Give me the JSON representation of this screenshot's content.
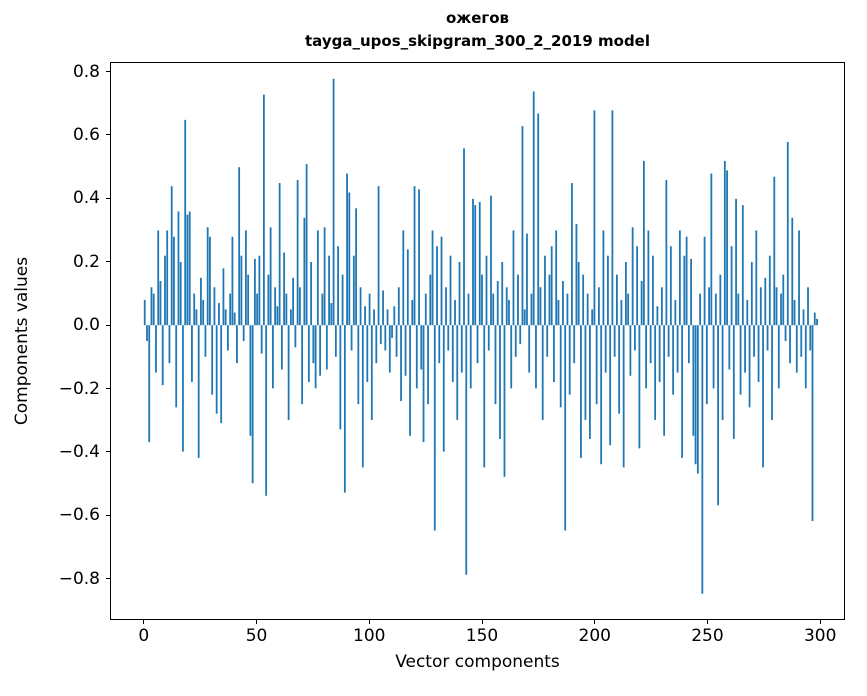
{
  "chart_data": {
    "type": "bar",
    "title": "ожегов",
    "subtitle": "tayga_upos_skipgram_300_2_2019 model",
    "xlabel": "Vector components",
    "ylabel": "Components values",
    "bar_color": "#1f77b4",
    "grid": false,
    "legend": null,
    "n_components": 300,
    "xlim": [
      -15,
      311
    ],
    "ylim": [
      -0.93,
      0.83
    ],
    "xticks": [
      0,
      50,
      100,
      150,
      200,
      250,
      300
    ],
    "xtick_labels": [
      "0",
      "50",
      "100",
      "150",
      "200",
      "250",
      "300"
    ],
    "yticks": [
      -0.8,
      -0.6,
      -0.4,
      -0.2,
      0.0,
      0.2,
      0.4,
      0.6,
      0.8
    ],
    "ytick_labels": [
      "−0.8",
      "−0.6",
      "−0.4",
      "−0.2",
      "0.0",
      "0.2",
      "0.4",
      "0.6",
      "0.8"
    ],
    "values": [
      0.08,
      -0.05,
      -0.37,
      0.12,
      0.1,
      -0.15,
      0.3,
      0.14,
      -0.19,
      0.22,
      0.3,
      -0.12,
      0.44,
      0.28,
      -0.26,
      0.36,
      0.2,
      -0.4,
      0.65,
      0.35,
      0.36,
      -0.18,
      0.1,
      0.05,
      -0.42,
      0.15,
      0.08,
      -0.1,
      0.31,
      0.28,
      -0.22,
      0.12,
      -0.28,
      0.07,
      -0.31,
      0.18,
      0.05,
      -0.08,
      0.1,
      0.28,
      0.04,
      -0.12,
      0.5,
      0.22,
      -0.05,
      0.3,
      0.16,
      -0.35,
      -0.5,
      0.21,
      0.1,
      0.22,
      -0.09,
      0.73,
      -0.54,
      0.16,
      0.31,
      -0.2,
      0.12,
      0.06,
      0.45,
      -0.14,
      0.23,
      0.1,
      -0.3,
      0.05,
      0.15,
      -0.07,
      0.46,
      0.12,
      -0.25,
      0.34,
      0.51,
      -0.18,
      0.2,
      -0.12,
      -0.2,
      0.3,
      -0.16,
      0.1,
      0.31,
      -0.14,
      0.22,
      0.07,
      0.78,
      -0.1,
      0.25,
      -0.33,
      0.16,
      -0.53,
      0.48,
      0.42,
      -0.08,
      0.22,
      0.37,
      -0.25,
      0.12,
      -0.45,
      0.06,
      -0.18,
      0.1,
      -0.3,
      0.05,
      -0.12,
      0.44,
      -0.06,
      0.11,
      -0.08,
      0.05,
      -0.15,
      -0.04,
      0.06,
      -0.1,
      0.12,
      -0.24,
      0.3,
      -0.16,
      0.24,
      -0.35,
      0.08,
      0.44,
      -0.2,
      0.43,
      -0.14,
      -0.37,
      0.1,
      -0.25,
      0.16,
      0.3,
      -0.65,
      0.25,
      -0.12,
      0.28,
      -0.4,
      0.12,
      -0.08,
      0.22,
      -0.18,
      0.08,
      -0.3,
      0.2,
      -0.15,
      0.56,
      -0.79,
      0.1,
      -0.2,
      0.4,
      0.38,
      -0.12,
      0.39,
      0.16,
      -0.45,
      0.22,
      -0.08,
      0.41,
      0.1,
      -0.25,
      0.14,
      -0.36,
      0.2,
      -0.48,
      0.12,
      0.08,
      -0.2,
      0.3,
      -0.1,
      0.16,
      -0.06,
      0.63,
      0.05,
      0.29,
      -0.15,
      0.1,
      0.74,
      -0.2,
      0.67,
      0.12,
      -0.3,
      0.22,
      -0.1,
      0.16,
      0.25,
      -0.18,
      0.3,
      0.08,
      -0.26,
      0.14,
      -0.65,
      0.1,
      -0.22,
      0.45,
      -0.12,
      0.32,
      0.2,
      -0.42,
      0.16,
      -0.3,
      0.1,
      -0.36,
      0.05,
      0.68,
      -0.25,
      0.12,
      -0.44,
      0.3,
      -0.15,
      0.22,
      -0.38,
      0.68,
      -0.1,
      0.16,
      -0.28,
      0.08,
      -0.45,
      0.2,
      0.1,
      -0.16,
      0.31,
      -0.08,
      0.25,
      -0.39,
      0.14,
      0.52,
      -0.2,
      0.3,
      -0.12,
      0.22,
      -0.3,
      0.06,
      -0.18,
      0.12,
      -0.35,
      0.46,
      -0.1,
      0.25,
      -0.22,
      0.08,
      -0.15,
      0.3,
      -0.42,
      0.22,
      0.28,
      -0.12,
      0.21,
      -0.35,
      -0.44,
      -0.47,
      0.1,
      -0.85,
      0.28,
      -0.25,
      0.12,
      0.48,
      -0.2,
      0.1,
      -0.57,
      0.16,
      -0.3,
      0.52,
      0.49,
      -0.14,
      0.25,
      -0.36,
      0.4,
      0.1,
      -0.22,
      0.38,
      -0.15,
      0.08,
      -0.26,
      0.2,
      -0.1,
      0.3,
      -0.18,
      0.12,
      -0.45,
      0.15,
      -0.08,
      0.22,
      -0.3,
      0.47,
      0.12,
      -0.2,
      0.1,
      0.16,
      -0.05,
      0.58,
      -0.12,
      0.34,
      0.08,
      -0.15,
      0.3,
      -0.1,
      0.05,
      -0.2,
      0.12,
      -0.08,
      -0.62,
      0.04,
      0.02
    ]
  }
}
